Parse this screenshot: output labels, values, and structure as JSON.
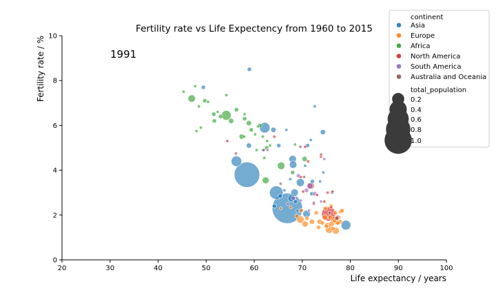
{
  "chart_data": {
    "type": "scatter",
    "title": "Fertility rate vs Life Expectency from 1960 to 2015",
    "annotation": "1991",
    "xlabel": "Life expectancy / years",
    "ylabel": "Fertility rate / %",
    "xlim": [
      20,
      100
    ],
    "ylim": [
      0,
      10
    ],
    "xticks": [
      "20",
      "30",
      "40",
      "50",
      "60",
      "70",
      "80",
      "90",
      "100"
    ],
    "yticks": [
      "0",
      "2",
      "4",
      "6",
      "8",
      "10"
    ],
    "grid": false,
    "legend": {
      "placement": "top-right",
      "hue_title": "continent",
      "size_title": "total_population",
      "size_entries": [
        {
          "label": "0.2",
          "value": 0.2
        },
        {
          "label": "0.4",
          "value": 0.4
        },
        {
          "label": "0.6",
          "value": 0.6
        },
        {
          "label": "0.8",
          "value": 0.8
        },
        {
          "label": "1.0",
          "value": 1.0
        }
      ]
    },
    "series": [
      {
        "name": "Asia",
        "color": "#1f77b4",
        "points": [
          [
            58.5,
            3.8,
            0.7
          ],
          [
            66.9,
            2.3,
            1.0
          ],
          [
            79.1,
            1.55,
            0.1
          ],
          [
            62.2,
            5.9,
            0.12
          ],
          [
            64.6,
            3.0,
            0.2
          ],
          [
            56.3,
            4.4,
            0.12
          ],
          [
            69.6,
            3.45,
            0.07
          ],
          [
            68.4,
            3.0,
            0.06
          ],
          [
            67.8,
            2.75,
            0.06
          ],
          [
            68.0,
            4.5,
            0.06
          ],
          [
            68.1,
            4.25,
            0.06
          ],
          [
            70.9,
            2.05,
            0.06
          ],
          [
            58.9,
            5.1,
            0.03
          ],
          [
            64.0,
            5.8,
            0.03
          ],
          [
            74.3,
            5.7,
            0.03
          ],
          [
            59.0,
            8.5,
            0.02
          ],
          [
            49.4,
            7.7,
            0.02
          ],
          [
            71.1,
            5.1,
            0.02
          ],
          [
            72.6,
            6.85,
            0.01
          ],
          [
            65.1,
            5.1,
            0.02
          ],
          [
            64.2,
            2.4,
            0.02
          ],
          [
            66.7,
            5.8,
            0.01
          ],
          [
            71.8,
            5.35,
            0.01
          ],
          [
            74.4,
            3.9,
            0.01
          ],
          [
            76.2,
            3.0,
            0.01
          ],
          [
            72.1,
            3.5,
            0.02
          ],
          [
            68.6,
            2.6,
            0.02
          ],
          [
            72.0,
            2.95,
            0.02
          ],
          [
            70.6,
            4.2,
            0.01
          ],
          [
            73.7,
            3.5,
            0.01
          ],
          [
            61.8,
            4.9,
            0.01
          ],
          [
            65.4,
            2.85,
            0.02
          ],
          [
            66.3,
            3.1,
            0.01
          ],
          [
            69.0,
            2.2,
            0.01
          ],
          [
            67.5,
            3.6,
            0.01
          ]
        ]
      },
      {
        "name": "Europe",
        "color": "#ff7f0e",
        "points": [
          [
            75.6,
            1.35,
            0.06
          ],
          [
            77.0,
            1.3,
            0.05
          ],
          [
            76.6,
            1.8,
            0.05
          ],
          [
            77.3,
            1.7,
            0.05
          ],
          [
            69.6,
            1.8,
            0.06
          ],
          [
            70.6,
            1.6,
            0.04
          ],
          [
            72.0,
            1.7,
            0.03
          ],
          [
            73.6,
            1.7,
            0.03
          ],
          [
            75.3,
            1.55,
            0.03
          ],
          [
            76.1,
            1.6,
            0.03
          ],
          [
            74.7,
            1.9,
            0.03
          ],
          [
            78.0,
            2.15,
            0.02
          ],
          [
            76.0,
            2.4,
            0.02
          ],
          [
            77.6,
            1.9,
            0.02
          ],
          [
            76.4,
            1.4,
            0.02
          ],
          [
            75.0,
            1.5,
            0.02
          ],
          [
            73.4,
            1.45,
            0.02
          ],
          [
            74.2,
            1.65,
            0.02
          ],
          [
            71.0,
            1.85,
            0.02
          ],
          [
            69.8,
            2.2,
            0.02
          ],
          [
            68.9,
            1.95,
            0.02
          ],
          [
            72.9,
            2.1,
            0.02
          ],
          [
            77.9,
            1.7,
            0.02
          ],
          [
            76.9,
            2.1,
            0.02
          ],
          [
            75.8,
            1.9,
            0.02
          ],
          [
            74.8,
            2.3,
            0.02
          ],
          [
            77.4,
            1.65,
            0.02
          ],
          [
            65.5,
            2.3,
            0.01
          ],
          [
            67.6,
            2.35,
            0.01
          ],
          [
            78.3,
            2.2,
            0.02
          ],
          [
            76.7,
            1.75,
            0.02
          ]
        ]
      },
      {
        "name": "Africa",
        "color": "#2ca02c",
        "points": [
          [
            47.0,
            7.2,
            0.06
          ],
          [
            54.2,
            6.45,
            0.1
          ],
          [
            65.6,
            4.2,
            0.06
          ],
          [
            62.4,
            3.55,
            0.05
          ],
          [
            58.9,
            6.1,
            0.03
          ],
          [
            55.2,
            6.2,
            0.03
          ],
          [
            57.4,
            5.5,
            0.03
          ],
          [
            59.4,
            5.8,
            0.02
          ],
          [
            61.2,
            6.0,
            0.02
          ],
          [
            62.6,
            5.0,
            0.02
          ],
          [
            56.3,
            6.7,
            0.02
          ],
          [
            58.0,
            6.3,
            0.02
          ],
          [
            49.7,
            7.1,
            0.02
          ],
          [
            51.6,
            6.5,
            0.02
          ],
          [
            53.0,
            6.4,
            0.02
          ],
          [
            45.3,
            7.5,
            0.01
          ],
          [
            47.7,
            7.75,
            0.01
          ],
          [
            48.5,
            6.85,
            0.01
          ],
          [
            50.4,
            7.05,
            0.01
          ],
          [
            51.7,
            6.2,
            0.02
          ],
          [
            52.4,
            6.6,
            0.01
          ],
          [
            54.2,
            7.35,
            0.01
          ],
          [
            58.0,
            6.5,
            0.01
          ],
          [
            60.2,
            5.6,
            0.01
          ],
          [
            61.8,
            5.5,
            0.01
          ],
          [
            62.1,
            4.55,
            0.01
          ],
          [
            63.3,
            5.1,
            0.01
          ],
          [
            57.9,
            5.5,
            0.01
          ],
          [
            60.5,
            4.9,
            0.01
          ],
          [
            68.5,
            5.15,
            0.01
          ],
          [
            70.5,
            4.5,
            0.03
          ],
          [
            48.9,
            5.9,
            0.01
          ],
          [
            48.0,
            5.75,
            0.01
          ],
          [
            62.7,
            5.3,
            0.01
          ],
          [
            68.0,
            3.9,
            0.02
          ],
          [
            60.8,
            5.95,
            0.01
          ]
        ]
      },
      {
        "name": "North America",
        "color": "#d62728",
        "points": [
          [
            75.5,
            2.05,
            0.22
          ],
          [
            71.8,
            3.3,
            0.05
          ],
          [
            54.4,
            5.3,
            0.01
          ],
          [
            64.2,
            5.5,
            0.01
          ],
          [
            70.6,
            5.05,
            0.01
          ],
          [
            73.9,
            4.6,
            0.01
          ],
          [
            75.3,
            3.0,
            0.01
          ],
          [
            76.3,
            3.05,
            0.01
          ],
          [
            71.2,
            4.4,
            0.01
          ],
          [
            69.7,
            3.7,
            0.01
          ],
          [
            77.3,
            1.9,
            0.02
          ],
          [
            72.4,
            2.5,
            0.01
          ],
          [
            74.6,
            2.6,
            0.01
          ],
          [
            76.0,
            2.35,
            0.01
          ],
          [
            70.2,
            3.05,
            0.01
          ],
          [
            73.1,
            2.9,
            0.01
          ]
        ]
      },
      {
        "name": "South America",
        "color": "#9467bd",
        "points": [
          [
            71.6,
            3.3,
            0.04
          ],
          [
            69.2,
            3.75,
            0.02
          ],
          [
            72.6,
            2.95,
            0.02
          ],
          [
            70.9,
            3.1,
            0.02
          ],
          [
            73.9,
            2.6,
            0.01
          ],
          [
            68.1,
            2.75,
            0.02
          ],
          [
            62.8,
            4.9,
            0.01
          ],
          [
            71.4,
            2.2,
            0.01
          ],
          [
            74.6,
            4.5,
            0.01
          ],
          [
            69.7,
            2.65,
            0.01
          ],
          [
            67.0,
            2.5,
            0.01
          ],
          [
            72.4,
            2.55,
            0.01
          ]
        ]
      },
      {
        "name": "Australia and Oceania",
        "color": "#8c564b",
        "points": [
          [
            77.2,
            1.85,
            0.02
          ],
          [
            75.7,
            2.1,
            0.01
          ],
          [
            62.0,
            4.9,
            0.01
          ],
          [
            56.2,
            4.75,
            0.01
          ],
          [
            69.6,
            5.05,
            0.01
          ],
          [
            73.9,
            4.7,
            0.01
          ],
          [
            65.5,
            3.4,
            0.01
          ],
          [
            70.4,
            3.7,
            0.01
          ]
        ]
      }
    ]
  }
}
